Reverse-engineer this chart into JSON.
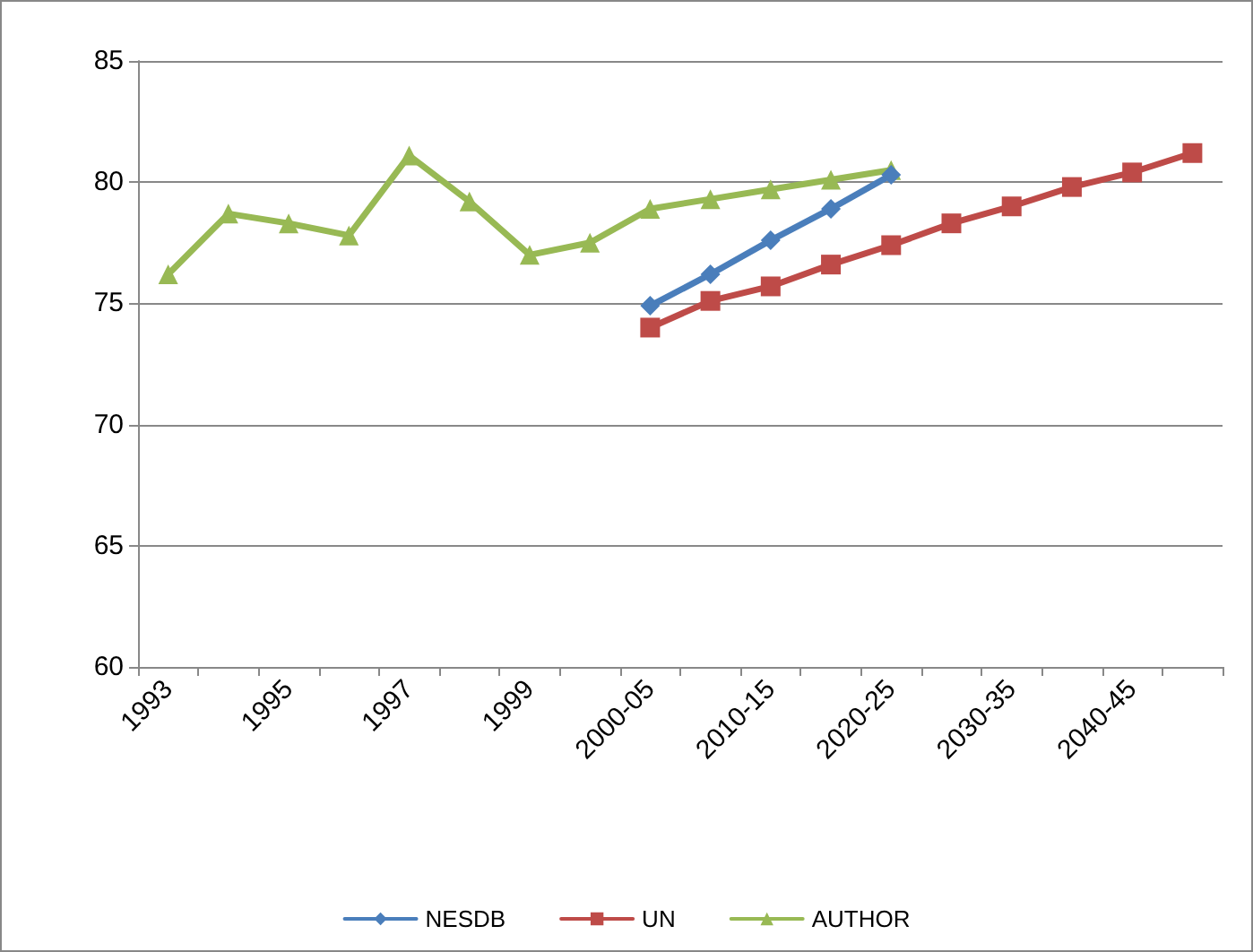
{
  "chart_data": {
    "type": "line",
    "categories": [
      "1993",
      null,
      "1995",
      null,
      "1997",
      null,
      "1999",
      null,
      "2000-05",
      null,
      "2010-15",
      null,
      "2020-25",
      null,
      "2030-35",
      null,
      "2040-45",
      null
    ],
    "series": [
      {
        "name": "NESDB",
        "color": "#4a7ebb",
        "marker": "diamond",
        "values": [
          null,
          null,
          null,
          null,
          null,
          null,
          null,
          null,
          74.9,
          76.2,
          77.6,
          78.9,
          80.3,
          null,
          null,
          null,
          null,
          null
        ]
      },
      {
        "name": "UN",
        "color": "#be4b48",
        "marker": "square",
        "values": [
          null,
          null,
          null,
          null,
          null,
          null,
          null,
          null,
          74.0,
          75.1,
          75.7,
          76.6,
          77.4,
          78.3,
          79.0,
          79.8,
          80.4,
          81.2
        ]
      },
      {
        "name": "AUTHOR",
        "color": "#98b954",
        "marker": "triangle",
        "values": [
          76.2,
          78.7,
          78.3,
          77.8,
          81.1,
          79.2,
          77.0,
          77.5,
          78.9,
          79.3,
          79.7,
          80.1,
          80.5,
          null,
          null,
          null,
          null,
          null
        ]
      }
    ],
    "ylim": [
      60,
      85
    ],
    "yticks": [
      60,
      65,
      70,
      75,
      80,
      85
    ],
    "grid": "y",
    "legend": "bottom"
  }
}
